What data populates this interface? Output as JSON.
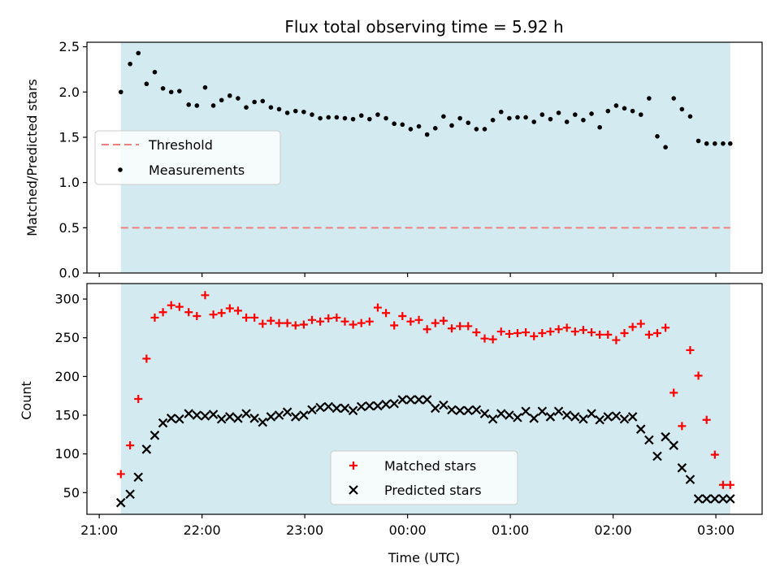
{
  "chart_data": {
    "type": "scatter",
    "title": "Flux total observing time = 5.92 h",
    "xlabel": "Time (UTC)",
    "x_unit": "hours_since_21:00_UTC",
    "xlim": [
      -0.12,
      6.45
    ],
    "xticks": [
      {
        "value": 0,
        "label": "21:00"
      },
      {
        "value": 1,
        "label": "22:00"
      },
      {
        "value": 2,
        "label": "23:00"
      },
      {
        "value": 3,
        "label": "00:00"
      },
      {
        "value": 4,
        "label": "01:00"
      },
      {
        "value": 5,
        "label": "02:00"
      },
      {
        "value": 6,
        "label": "03:00"
      }
    ],
    "observing_span": [
      0.21,
      6.14
    ],
    "observing_span_color": "#d3eaf0",
    "panels": [
      {
        "id": "ratio",
        "ylabel": "Matched/Predicted stars",
        "ylim": [
          0,
          2.55
        ],
        "yticks": [
          "0.0",
          "0.5",
          "1.0",
          "1.5",
          "2.0",
          "2.5"
        ],
        "legend": {
          "position": "center-left",
          "entries": [
            "Threshold",
            "Measurements"
          ]
        },
        "threshold": {
          "name": "Threshold",
          "value": 0.5,
          "color": "#f08080"
        },
        "series": [
          {
            "name": "Measurements",
            "marker": "dot",
            "color": "#000000",
            "x": [
              0.21,
              0.3,
              0.38,
              0.46,
              0.54,
              0.62,
              0.7,
              0.78,
              0.87,
              0.95,
              1.03,
              1.11,
              1.19,
              1.27,
              1.35,
              1.43,
              1.51,
              1.59,
              1.67,
              1.75,
              1.83,
              1.91,
              1.99,
              2.07,
              2.15,
              2.23,
              2.31,
              2.39,
              2.47,
              2.55,
              2.63,
              2.71,
              2.79,
              2.87,
              2.95,
              3.03,
              3.11,
              3.19,
              3.27,
              3.35,
              3.43,
              3.51,
              3.59,
              3.67,
              3.75,
              3.83,
              3.91,
              3.99,
              4.07,
              4.15,
              4.23,
              4.31,
              4.39,
              4.47,
              4.55,
              4.63,
              4.71,
              4.79,
              4.87,
              4.95,
              5.03,
              5.11,
              5.19,
              5.27,
              5.35,
              5.43,
              5.51,
              5.59,
              5.67,
              5.75,
              5.83,
              5.91,
              5.99,
              6.07,
              6.14
            ],
            "y": [
              2.0,
              2.31,
              2.43,
              2.09,
              2.22,
              2.04,
              2.0,
              2.01,
              1.86,
              1.85,
              2.05,
              1.85,
              1.91,
              1.96,
              1.93,
              1.83,
              1.89,
              1.9,
              1.83,
              1.81,
              1.77,
              1.79,
              1.78,
              1.75,
              1.71,
              1.72,
              1.72,
              1.71,
              1.7,
              1.74,
              1.7,
              1.75,
              1.71,
              1.65,
              1.64,
              1.59,
              1.62,
              1.53,
              1.6,
              1.73,
              1.63,
              1.71,
              1.66,
              1.59,
              1.59,
              1.69,
              1.78,
              1.71,
              1.72,
              1.72,
              1.67,
              1.75,
              1.7,
              1.77,
              1.67,
              1.75,
              1.69,
              1.76,
              1.61,
              1.79,
              1.85,
              1.82,
              1.79,
              1.75,
              1.93,
              1.51,
              1.39,
              1.93,
              1.81,
              1.73,
              1.46,
              1.43,
              1.43,
              1.43,
              1.43
            ]
          }
        ]
      },
      {
        "id": "count",
        "ylabel": "Count",
        "ylim": [
          22,
          320
        ],
        "yticks": [
          "50",
          "100",
          "150",
          "200",
          "250",
          "300"
        ],
        "ytick_values": [
          50,
          100,
          150,
          200,
          250,
          300
        ],
        "legend": {
          "position": "bottom-center",
          "entries": [
            "Matched stars",
            "Predicted stars"
          ]
        },
        "series": [
          {
            "name": "Matched stars",
            "marker": "plus",
            "color": "#ff0000",
            "x": [
              0.21,
              0.3,
              0.38,
              0.46,
              0.54,
              0.62,
              0.7,
              0.78,
              0.87,
              0.95,
              1.03,
              1.11,
              1.19,
              1.27,
              1.35,
              1.43,
              1.51,
              1.59,
              1.67,
              1.75,
              1.83,
              1.91,
              1.99,
              2.07,
              2.15,
              2.23,
              2.31,
              2.39,
              2.47,
              2.55,
              2.63,
              2.71,
              2.79,
              2.87,
              2.95,
              3.03,
              3.11,
              3.19,
              3.27,
              3.35,
              3.43,
              3.51,
              3.59,
              3.67,
              3.75,
              3.83,
              3.91,
              3.99,
              4.07,
              4.15,
              4.23,
              4.31,
              4.39,
              4.47,
              4.55,
              4.63,
              4.71,
              4.79,
              4.87,
              4.95,
              5.03,
              5.11,
              5.19,
              5.27,
              5.35,
              5.43,
              5.51,
              5.59,
              5.67,
              5.75,
              5.83,
              5.91,
              5.99,
              6.07,
              6.14
            ],
            "y": [
              74,
              111,
              171,
              223,
              276,
              283,
              292,
              290,
              283,
              278,
              305,
              280,
              282,
              288,
              285,
              276,
              276,
              268,
              272,
              269,
              269,
              266,
              267,
              273,
              271,
              275,
              276,
              271,
              267,
              269,
              271,
              289,
              282,
              266,
              278,
              271,
              273,
              261,
              269,
              272,
              262,
              265,
              265,
              257,
              249,
              248,
              258,
              255,
              256,
              257,
              252,
              256,
              258,
              261,
              263,
              258,
              260,
              257,
              254,
              254,
              247,
              256,
              264,
              268,
              254,
              256,
              263,
              179,
              136,
              234,
              201,
              144,
              99,
              60,
              60
            ]
          },
          {
            "name": "Predicted stars",
            "marker": "x",
            "color": "#000000",
            "x": [
              0.21,
              0.3,
              0.38,
              0.46,
              0.54,
              0.62,
              0.7,
              0.78,
              0.87,
              0.95,
              1.03,
              1.11,
              1.19,
              1.27,
              1.35,
              1.43,
              1.51,
              1.59,
              1.67,
              1.75,
              1.83,
              1.91,
              1.99,
              2.07,
              2.15,
              2.23,
              2.31,
              2.39,
              2.47,
              2.55,
              2.63,
              2.71,
              2.79,
              2.87,
              2.95,
              3.03,
              3.11,
              3.19,
              3.27,
              3.35,
              3.43,
              3.51,
              3.59,
              3.67,
              3.75,
              3.83,
              3.91,
              3.99,
              4.07,
              4.15,
              4.23,
              4.31,
              4.39,
              4.47,
              4.55,
              4.63,
              4.71,
              4.79,
              4.87,
              4.95,
              5.03,
              5.11,
              5.19,
              5.27,
              5.35,
              5.43,
              5.51,
              5.59,
              5.67,
              5.75,
              5.83,
              5.91,
              5.99,
              6.07,
              6.14
            ],
            "y": [
              37,
              48,
              70,
              106,
              124,
              140,
              146,
              145,
              152,
              150,
              149,
              151,
              145,
              148,
              146,
              152,
              146,
              141,
              148,
              150,
              154,
              148,
              150,
              157,
              160,
              161,
              159,
              159,
              156,
              161,
              162,
              162,
              164,
              165,
              170,
              170,
              170,
              170,
              159,
              163,
              157,
              156,
              156,
              157,
              152,
              145,
              152,
              150,
              147,
              155,
              146,
              155,
              148,
              155,
              150,
              148,
              145,
              152,
              144,
              148,
              149,
              145,
              148,
              132,
              118,
              97,
              122,
              111,
              82,
              67,
              42,
              42,
              42,
              42,
              42
            ]
          }
        ]
      }
    ]
  }
}
